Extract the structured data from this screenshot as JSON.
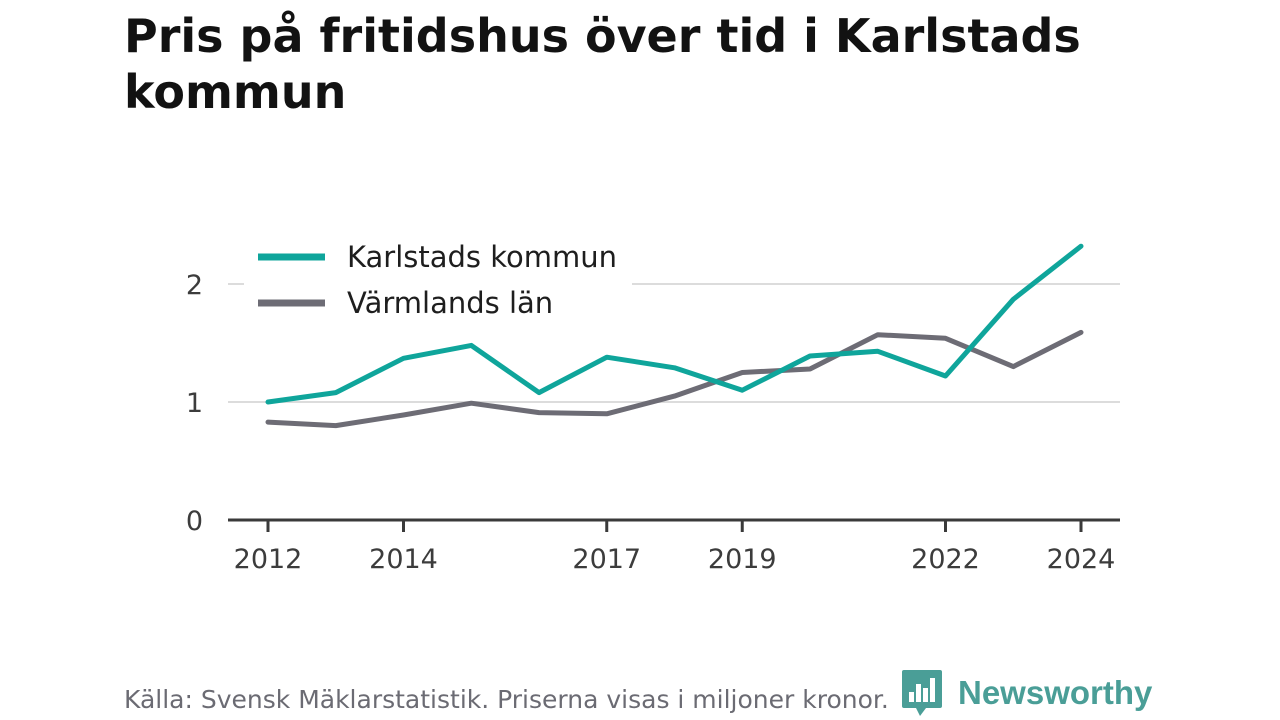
{
  "title": "Pris på fritidshus över tid i Karlstads kommun",
  "source": "Källa: Svensk Mäklarstatistik. Priserna visas i miljoner kronor.",
  "brand": {
    "name": "Newsworthy",
    "icon": "newsworthy-logo-icon",
    "color": "#4a9e97"
  },
  "chart_data": {
    "type": "line",
    "title": "Pris på fritidshus över tid i Karlstads kommun",
    "xlabel": "",
    "ylabel": "",
    "x": [
      2012,
      2013,
      2014,
      2015,
      2016,
      2017,
      2018,
      2019,
      2020,
      2021,
      2022,
      2023,
      2024
    ],
    "x_ticks": [
      "2012",
      "2014",
      "2017",
      "2019",
      "2022",
      "2024"
    ],
    "y_ticks": [
      "0",
      "1",
      "2"
    ],
    "ylim": [
      0,
      2.35
    ],
    "grid": true,
    "legend_position": "top-left",
    "series": [
      {
        "name": "Karlstads kommun",
        "color": "#0fa59b",
        "values": [
          1.0,
          1.08,
          1.37,
          1.48,
          1.08,
          1.38,
          1.29,
          1.1,
          1.39,
          1.43,
          1.22,
          1.87,
          2.32
        ]
      },
      {
        "name": "Värmlands län",
        "color": "#6d6c75",
        "values": [
          0.83,
          0.8,
          0.89,
          0.99,
          0.91,
          0.9,
          1.05,
          1.25,
          1.28,
          1.57,
          1.54,
          1.3,
          1.59
        ]
      }
    ]
  }
}
